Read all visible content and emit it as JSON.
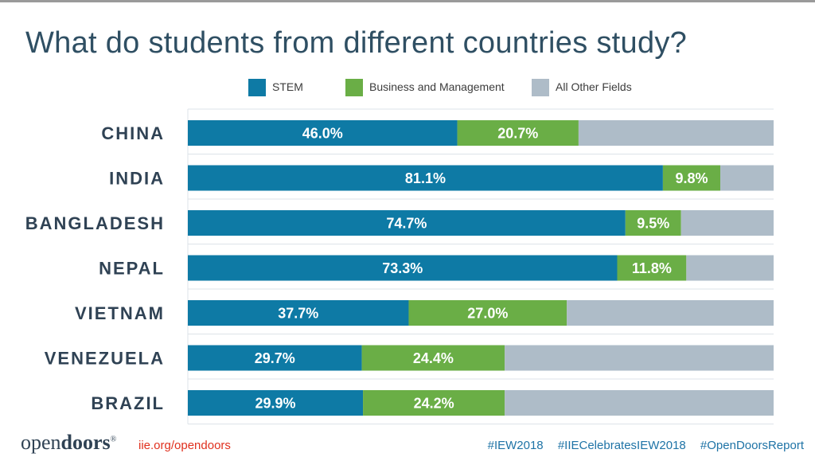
{
  "title": "What do students from different countries study?",
  "colors": {
    "stem": "#0e7aa5",
    "business": "#6aae46",
    "other": "#aebcc8",
    "grid": "#dde3e8"
  },
  "legend": [
    {
      "label": "STEM",
      "color": "#0e7aa5"
    },
    {
      "label": "Business and Management",
      "color": "#6aae46"
    },
    {
      "label": "All Other Fields",
      "color": "#aebcc8"
    }
  ],
  "chart_data": {
    "type": "bar",
    "orientation": "horizontal",
    "stacked": true,
    "title": "What do students from different countries study?",
    "categories": [
      "CHINA",
      "INDIA",
      "BANGLADESH",
      "NEPAL",
      "VIETNAM",
      "VENEZUELA",
      "BRAZIL"
    ],
    "series": [
      {
        "name": "STEM",
        "values": [
          46.0,
          81.1,
          74.7,
          73.3,
          37.7,
          29.7,
          29.9
        ],
        "labels": [
          "46.0%",
          "81.1%",
          "74.7%",
          "73.3%",
          "37.7%",
          "29.7%",
          "29.9%"
        ]
      },
      {
        "name": "Business and Management",
        "values": [
          20.7,
          9.8,
          9.5,
          11.8,
          27.0,
          24.4,
          24.2
        ],
        "labels": [
          "20.7%",
          "9.8%",
          "9.5%",
          "11.8%",
          "27.0%",
          "24.4%",
          "24.2%"
        ]
      },
      {
        "name": "All Other Fields",
        "values": [
          33.3,
          9.1,
          15.8,
          14.9,
          35.3,
          45.9,
          45.9
        ]
      }
    ],
    "xlim": [
      0,
      100
    ],
    "legend_position": "top",
    "grid": true
  },
  "footer": {
    "logo_light": "open",
    "logo_bold": "doors",
    "logo_mark": "®",
    "link": "iie.org/opendoors",
    "hashtags": [
      "#IEW2018",
      "#IIECelebratesIEW2018",
      "#OpenDoorsReport"
    ]
  }
}
